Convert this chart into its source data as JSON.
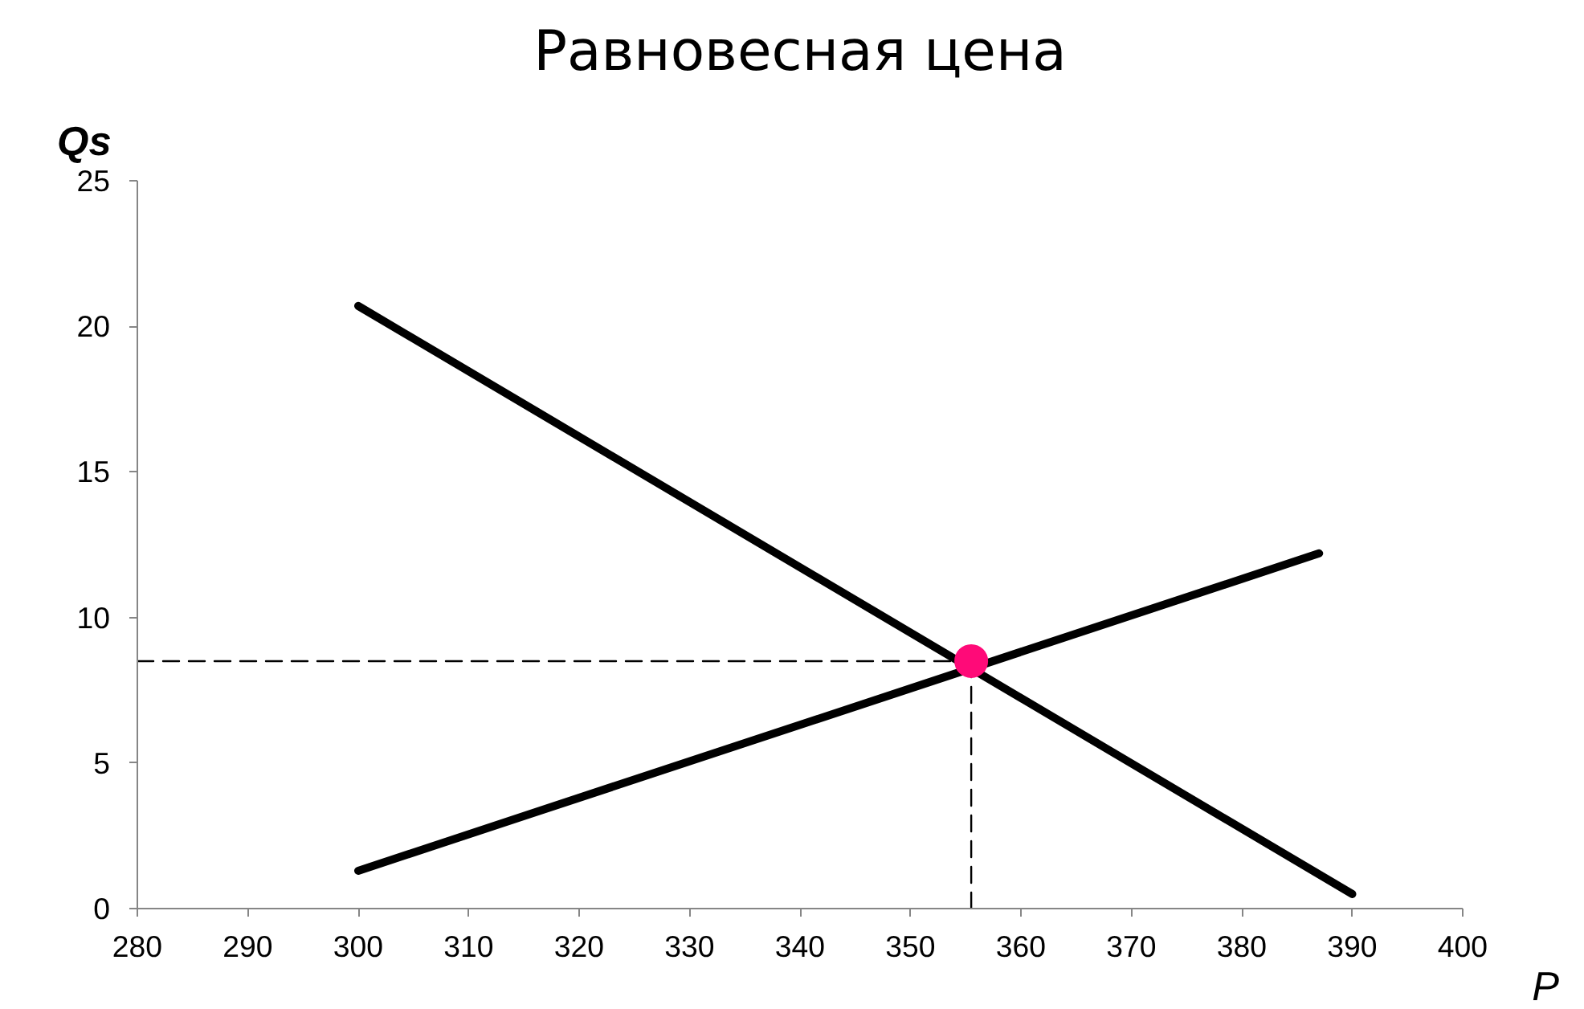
{
  "chart_data": {
    "type": "line",
    "title": "Равновесная цена",
    "xlabel": "P",
    "ylabel": "Qs",
    "xlim": [
      280,
      400
    ],
    "xticks": [
      280,
      290,
      300,
      310,
      320,
      330,
      340,
      350,
      360,
      370,
      380,
      390,
      400
    ],
    "ylim": [
      0,
      25
    ],
    "yticks": [
      0,
      5,
      10,
      15,
      20,
      25
    ],
    "grid": false,
    "series": [
      {
        "color": "#000000",
        "x": [
          300,
          390
        ],
        "values": [
          20.7,
          0.5
        ]
      },
      {
        "color": "#000000",
        "x": [
          300,
          387
        ],
        "values": [
          1.3,
          12.2
        ]
      },
      {
        "color": "#000000",
        "x": [
          280,
          355.5
        ],
        "values": [
          8.5,
          8.5
        ],
        "line_style": "dashed"
      },
      {
        "color": "#000000",
        "x": [
          355.5,
          355.5
        ],
        "values": [
          0,
          8.5
        ],
        "line_style": "dashed"
      },
      {
        "type": "scatter",
        "color": "#ff0a78",
        "x": [
          355.5
        ],
        "values": [
          8.5
        ],
        "marker": "circle"
      }
    ]
  }
}
